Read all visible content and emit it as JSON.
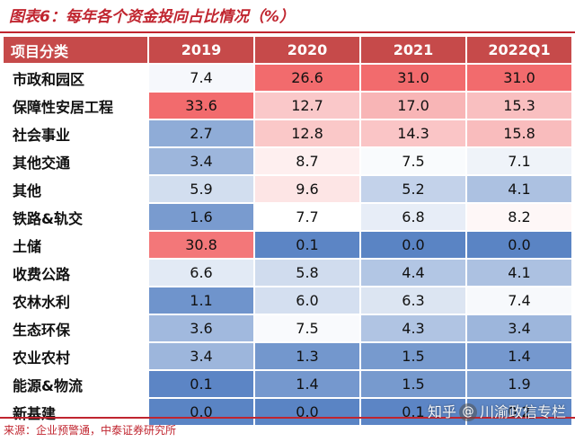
{
  "title": "图表6：每年各个资金投向占比情况（%）",
  "source": "来源：企业预警通，中泰证券研究所",
  "watermark": {
    "prefix": "知乎",
    "name": "川渝政信专栏"
  },
  "icon": "at-icon",
  "colors": {
    "header_bg": "#c64a4a",
    "rule": "#c0252f",
    "high": "#f26b6d",
    "low": "#5a84c4",
    "mid": "#ffffff"
  },
  "table": {
    "header_label": "项目分类",
    "columns": [
      "2019",
      "2020",
      "2021",
      "2022Q1"
    ],
    "rows": [
      {
        "category": "市政和园区",
        "values": [
          "7.4",
          "26.6",
          "31.0",
          "31.0"
        ]
      },
      {
        "category": "保障性安居工程",
        "values": [
          "33.6",
          "12.7",
          "17.0",
          "15.3"
        ]
      },
      {
        "category": "社会事业",
        "values": [
          "2.7",
          "12.8",
          "14.3",
          "15.8"
        ]
      },
      {
        "category": "其他交通",
        "values": [
          "3.4",
          "8.7",
          "7.5",
          "7.1"
        ]
      },
      {
        "category": "其他",
        "values": [
          "5.9",
          "9.6",
          "5.2",
          "4.1"
        ]
      },
      {
        "category": "铁路&轨交",
        "values": [
          "1.6",
          "7.7",
          "6.8",
          "8.2"
        ]
      },
      {
        "category": "土储",
        "values": [
          "30.8",
          "0.1",
          "0.0",
          "0.0"
        ]
      },
      {
        "category": "收费公路",
        "values": [
          "6.6",
          "5.8",
          "4.4",
          "4.1"
        ]
      },
      {
        "category": "农林水利",
        "values": [
          "1.1",
          "6.0",
          "6.3",
          "7.4"
        ]
      },
      {
        "category": "生态环保",
        "values": [
          "3.6",
          "7.5",
          "4.3",
          "3.4"
        ]
      },
      {
        "category": "农业农村",
        "values": [
          "3.4",
          "1.3",
          "1.5",
          "1.4"
        ]
      },
      {
        "category": "能源&物流",
        "values": [
          "0.1",
          "1.4",
          "1.5",
          "1.9"
        ]
      },
      {
        "category": "新基建",
        "values": [
          "0.0",
          "0.0",
          "0.1",
          "0.2"
        ]
      }
    ]
  }
}
